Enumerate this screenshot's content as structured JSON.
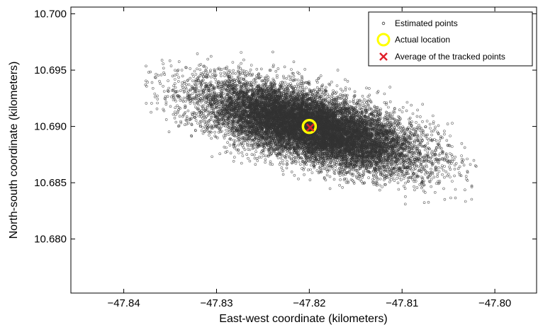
{
  "chart_data": {
    "type": "scatter",
    "title": "",
    "xlabel": "East-west coordinate (kilometers)",
    "ylabel": "North-south coordinate (kilometers)",
    "xlim": [
      -47.8457,
      -47.7955
    ],
    "ylim": [
      10.6752,
      10.7006
    ],
    "xticks": [
      -47.84,
      -47.83,
      -47.82,
      -47.81,
      -47.8
    ],
    "xtick_labels": [
      "−47.84",
      "−47.83",
      "−47.82",
      "−47.81",
      "−47.80"
    ],
    "yticks": [
      10.68,
      10.685,
      10.69,
      10.695,
      10.7
    ],
    "ytick_labels": [
      "10.680",
      "10.685",
      "10.690",
      "10.695",
      "10.700"
    ],
    "grid": false,
    "legend_position": "top-right",
    "legend": [
      {
        "label": "Estimated points",
        "marker": "dot",
        "color": "#333333"
      },
      {
        "label": "Actual location",
        "marker": "circle",
        "color": "#ffff00"
      },
      {
        "label": "Average of the tracked points",
        "marker": "x",
        "color": "#e0202a"
      }
    ],
    "series": [
      {
        "name": "Estimated points",
        "kind": "point-cloud",
        "count": 14000,
        "center": [
          -47.82,
          10.69
        ],
        "sd_x": 0.0058,
        "sd_y": 0.0019,
        "correlation": -0.62,
        "x_range": [
          -47.838,
          -47.802
        ],
        "y_range": [
          10.682,
          10.697
        ],
        "color": "#333333"
      },
      {
        "name": "Actual location",
        "x": [
          -47.82
        ],
        "y": [
          10.69
        ],
        "color": "#ffff00"
      },
      {
        "name": "Average of the tracked points",
        "x": [
          -47.8199
        ],
        "y": [
          10.6899
        ],
        "color": "#e0202a"
      }
    ]
  }
}
